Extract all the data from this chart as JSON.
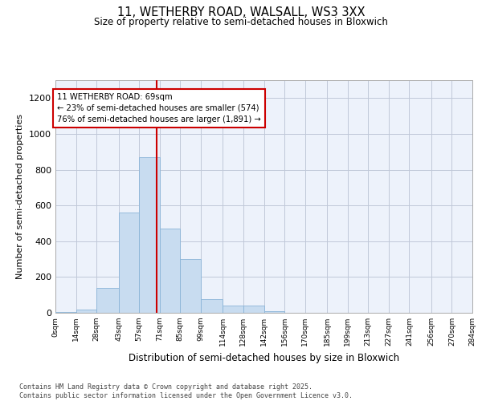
{
  "title_line1": "11, WETHERBY ROAD, WALSALL, WS3 3XX",
  "title_line2": "Size of property relative to semi-detached houses in Bloxwich",
  "xlabel": "Distribution of semi-detached houses by size in Bloxwich",
  "ylabel": "Number of semi-detached properties",
  "bin_edges": [
    0,
    14,
    28,
    43,
    57,
    71,
    85,
    99,
    114,
    128,
    142,
    156,
    170,
    185,
    199,
    213,
    227,
    241,
    256,
    270,
    284
  ],
  "bar_heights": [
    5,
    20,
    140,
    560,
    870,
    470,
    300,
    75,
    40,
    40,
    10,
    0,
    0,
    0,
    0,
    0,
    0,
    0,
    0,
    0
  ],
  "bar_color": "#c8dcf0",
  "bar_edge_color": "#8ab4d8",
  "property_size": 69,
  "vline_color": "#cc0000",
  "annotation_text": "11 WETHERBY ROAD: 69sqm\n← 23% of semi-detached houses are smaller (574)\n76% of semi-detached houses are larger (1,891) →",
  "annotation_box_color": "#ffffff",
  "annotation_box_edge_color": "#cc0000",
  "ylim": [
    0,
    1300
  ],
  "yticks": [
    0,
    200,
    400,
    600,
    800,
    1000,
    1200
  ],
  "tick_labels": [
    "0sqm",
    "14sqm",
    "28sqm",
    "43sqm",
    "57sqm",
    "71sqm",
    "85sqm",
    "99sqm",
    "114sqm",
    "128sqm",
    "142sqm",
    "156sqm",
    "170sqm",
    "185sqm",
    "199sqm",
    "213sqm",
    "227sqm",
    "241sqm",
    "256sqm",
    "270sqm",
    "284sqm"
  ],
  "footer_line1": "Contains HM Land Registry data © Crown copyright and database right 2025.",
  "footer_line2": "Contains public sector information licensed under the Open Government Licence v3.0.",
  "background_color": "#ffffff",
  "axes_bg_color": "#edf2fb",
  "grid_color": "#c0c8d8"
}
